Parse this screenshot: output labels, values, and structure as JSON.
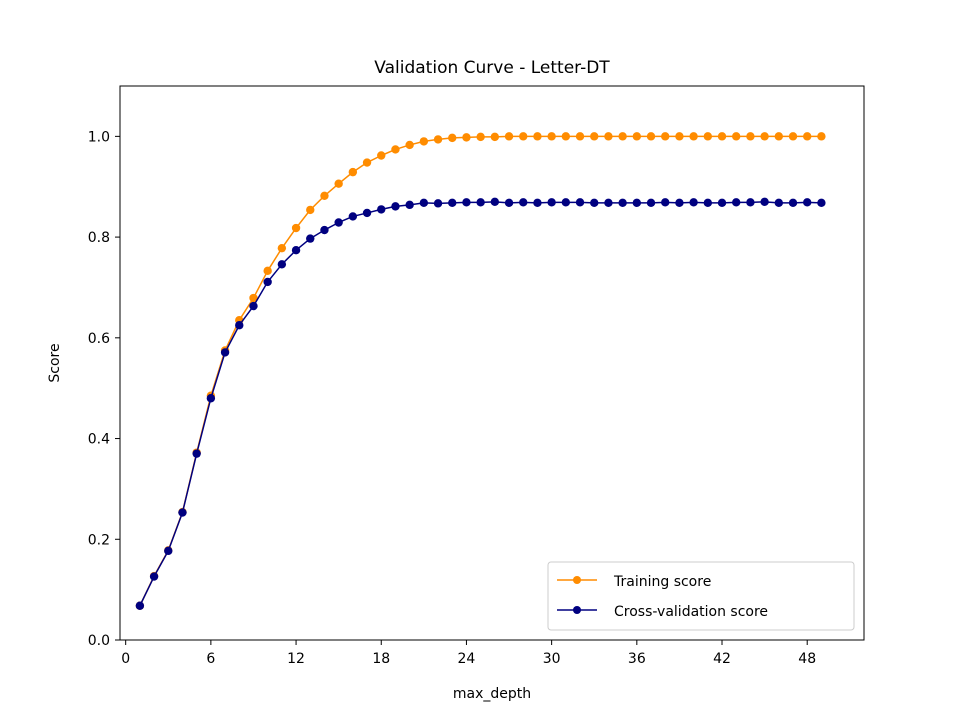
{
  "chart_data": {
    "type": "line",
    "title": "Validation Curve - Letter-DT",
    "xlabel": "max_depth",
    "ylabel": "Score",
    "xlim": [
      -0.4,
      52
    ],
    "ylim": [
      0.0,
      1.1
    ],
    "xticks": [
      0,
      6,
      12,
      18,
      24,
      30,
      36,
      42,
      48
    ],
    "yticks": [
      0.0,
      0.2,
      0.4,
      0.6,
      0.8,
      1.0
    ],
    "ytick_labels": [
      "0.0",
      "0.2",
      "0.4",
      "0.6",
      "0.8",
      "1.0"
    ],
    "grid": false,
    "legend_position": "lower-right",
    "x": [
      1,
      2,
      3,
      4,
      5,
      6,
      7,
      8,
      9,
      10,
      11,
      12,
      13,
      14,
      15,
      16,
      17,
      18,
      19,
      20,
      21,
      22,
      23,
      24,
      25,
      26,
      27,
      28,
      29,
      30,
      31,
      32,
      33,
      34,
      35,
      36,
      37,
      38,
      39,
      40,
      41,
      42,
      43,
      44,
      45,
      46,
      47,
      48,
      49
    ],
    "series": [
      {
        "name": "Training score",
        "color": "#ff8c00",
        "values": [
          0.068,
          0.127,
          0.178,
          0.254,
          0.372,
          0.485,
          0.575,
          0.635,
          0.679,
          0.733,
          0.778,
          0.818,
          0.854,
          0.882,
          0.906,
          0.929,
          0.948,
          0.962,
          0.974,
          0.983,
          0.99,
          0.994,
          0.997,
          0.998,
          0.999,
          0.999,
          1.0,
          1.0,
          1.0,
          1.0,
          1.0,
          1.0,
          1.0,
          1.0,
          1.0,
          1.0,
          1.0,
          1.0,
          1.0,
          1.0,
          1.0,
          1.0,
          1.0,
          1.0,
          1.0,
          1.0,
          1.0,
          1.0,
          1.0
        ]
      },
      {
        "name": "Cross-validation score",
        "color": "#000080",
        "values": [
          0.068,
          0.126,
          0.177,
          0.253,
          0.37,
          0.48,
          0.571,
          0.625,
          0.663,
          0.711,
          0.746,
          0.774,
          0.797,
          0.814,
          0.829,
          0.841,
          0.848,
          0.855,
          0.861,
          0.864,
          0.868,
          0.867,
          0.868,
          0.869,
          0.869,
          0.87,
          0.868,
          0.869,
          0.868,
          0.869,
          0.869,
          0.869,
          0.868,
          0.868,
          0.868,
          0.868,
          0.868,
          0.869,
          0.868,
          0.869,
          0.868,
          0.868,
          0.869,
          0.869,
          0.87,
          0.868,
          0.868,
          0.869,
          0.868
        ]
      }
    ]
  }
}
